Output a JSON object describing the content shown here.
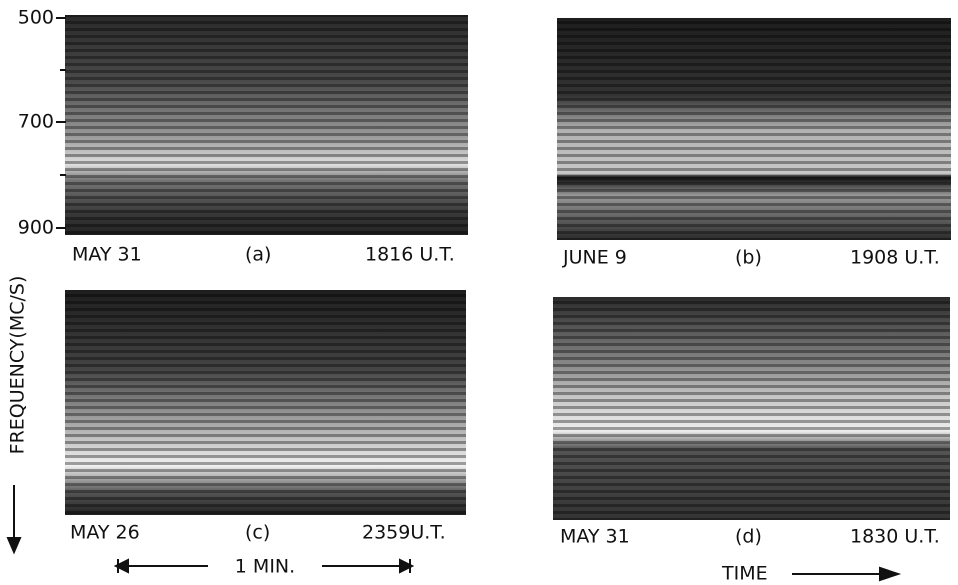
{
  "axis": {
    "label": "FREQUENCY(MC/S)",
    "ticks": [
      "500",
      "700",
      "900"
    ]
  },
  "panels": [
    {
      "date": "MAY 31",
      "label": "(a)",
      "time": "1816 U.T."
    },
    {
      "date": "JUNE 9",
      "label": "(b)",
      "time": "1908 U.T."
    },
    {
      "date": "MAY 26",
      "label": "(c)",
      "time": "2359U.T."
    },
    {
      "date": "MAY 31",
      "label": "(d)",
      "time": "1830 U.T."
    }
  ],
  "scale": "1 MIN.",
  "time_label": "TIME"
}
